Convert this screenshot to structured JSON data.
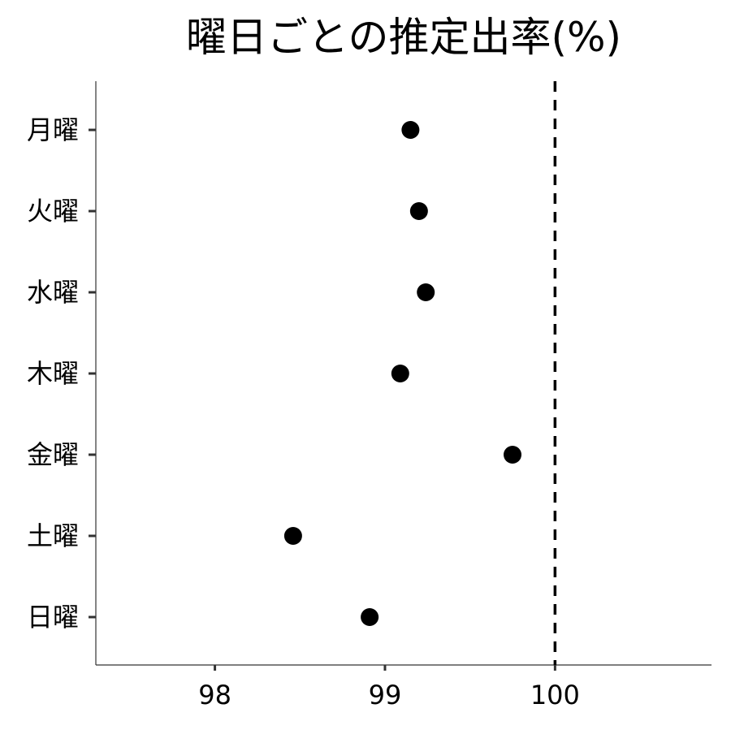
{
  "chart_data": {
    "type": "scatter",
    "title": "曜日ごとの推定出率(%)",
    "xlabel": "",
    "ylabel": "",
    "categories": [
      "月曜",
      "火曜",
      "水曜",
      "木曜",
      "金曜",
      "土曜",
      "日曜"
    ],
    "x_ticks": [
      "98",
      "99",
      "100"
    ],
    "xlim": [
      97.3,
      100.92
    ],
    "series": [
      {
        "values": [
          99.15,
          99.2,
          99.24,
          99.09,
          99.75,
          98.46,
          98.91
        ]
      }
    ],
    "reference_line": {
      "x": 100,
      "style": "dashed"
    },
    "grid": false,
    "legend": "none",
    "colors": {
      "point": "#000000",
      "axis": "#333333",
      "reference": "#000000"
    }
  }
}
